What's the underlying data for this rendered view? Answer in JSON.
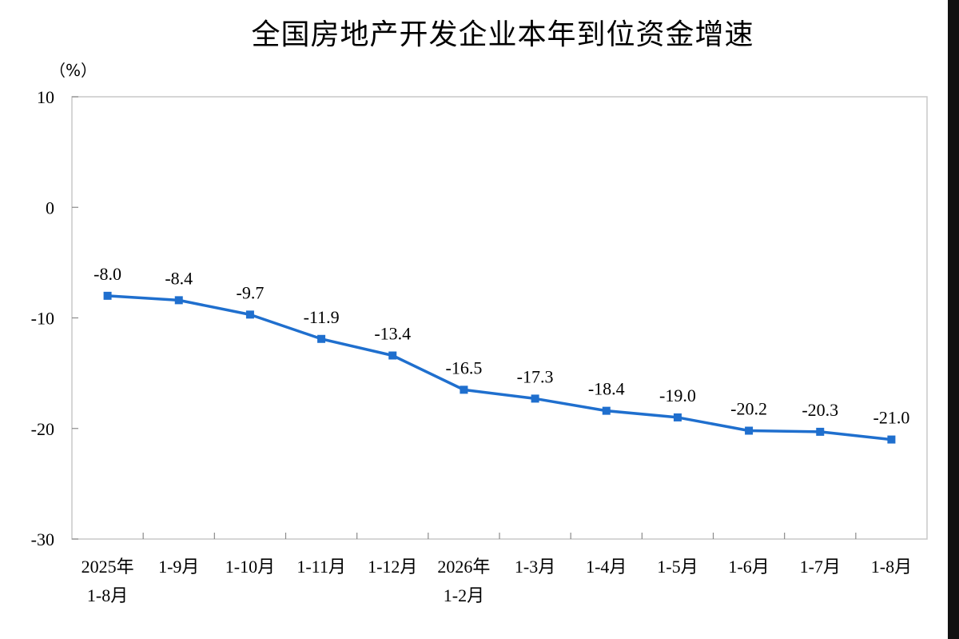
{
  "chart_data": {
    "type": "line",
    "title": "全国房地产开发企业本年到位资金增速",
    "ylabel": "（%）",
    "xlabel": "",
    "ylim": [
      -30,
      10
    ],
    "yticks": [
      10,
      0,
      -10,
      -20,
      -30
    ],
    "grid": false,
    "legend": "none",
    "categories": [
      [
        "2025年",
        "1-8月"
      ],
      [
        "1-9月"
      ],
      [
        "1-10月"
      ],
      [
        "1-11月"
      ],
      [
        "1-12月"
      ],
      [
        "2026年",
        "1-2月"
      ],
      [
        "1-3月"
      ],
      [
        "1-4月"
      ],
      [
        "1-5月"
      ],
      [
        "1-6月"
      ],
      [
        "1-7月"
      ],
      [
        "1-8月"
      ]
    ],
    "series": [
      {
        "values": [
          -8.0,
          -8.4,
          -9.7,
          -11.9,
          -13.4,
          -16.5,
          -17.3,
          -18.4,
          -19.0,
          -20.2,
          -20.3,
          -21.0
        ],
        "data_labels": [
          "-8.0",
          "-8.4",
          "-9.7",
          "-11.9",
          "-13.4",
          "-16.5",
          "-17.3",
          "-18.4",
          "-19.0",
          "-20.2",
          "-20.3",
          "-21.0"
        ],
        "color": "#1f6fce"
      }
    ]
  }
}
